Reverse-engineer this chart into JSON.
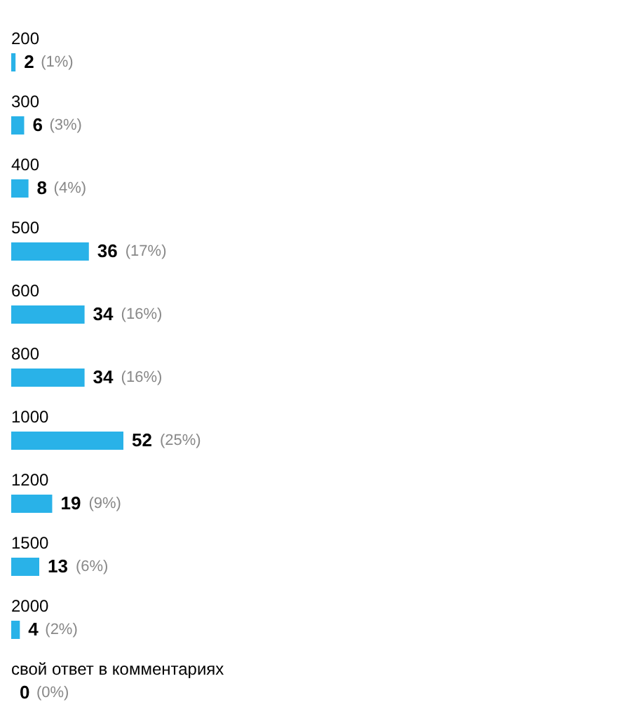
{
  "chart_data": {
    "type": "bar",
    "orientation": "horizontal",
    "categories": [
      "200",
      "300",
      "400",
      "500",
      "600",
      "800",
      "1000",
      "1200",
      "1500",
      "2000",
      "свой ответ в комментариях"
    ],
    "values": [
      2,
      6,
      8,
      36,
      34,
      34,
      52,
      19,
      13,
      4,
      0
    ],
    "color": "#29b2e8",
    "data_labels": true,
    "annotations": [
      {
        "text": "(1%)",
        "x": 2,
        "y": "200"
      },
      {
        "text": "(3%)",
        "x": 6,
        "y": "300"
      },
      {
        "text": "(4%)",
        "x": 8,
        "y": "400"
      },
      {
        "text": "(17%)",
        "x": 36,
        "y": "500"
      },
      {
        "text": "(16%)",
        "x": 34,
        "y": "600"
      },
      {
        "text": "(16%)",
        "x": 34,
        "y": "800"
      },
      {
        "text": "(25%)",
        "x": 52,
        "y": "1000"
      },
      {
        "text": "(9%)",
        "x": 19,
        "y": "1200"
      },
      {
        "text": "(6%)",
        "x": 13,
        "y": "1500"
      },
      {
        "text": "(2%)",
        "x": 4,
        "y": "2000"
      },
      {
        "text": "(0%)",
        "x": 0,
        "y": "свой ответ в комментариях"
      }
    ]
  }
}
